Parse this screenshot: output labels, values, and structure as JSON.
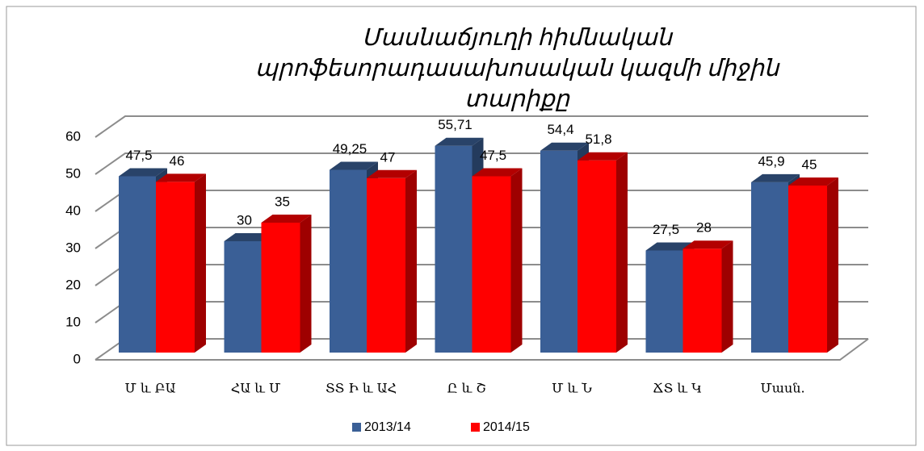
{
  "chart_data": {
    "type": "bar3d",
    "title": "Մասնաճյուղի հիմնական պրոֆեսորադասախոսական կազմի միջին տարիքը",
    "categories": [
      "Մ և ԲԱ",
      "ՀԱ և Մ",
      "ՏՏ Ի և ԱՀ",
      "Ը և Շ",
      "Մ և Ն",
      "ՃՏ և Կ",
      "Մասն."
    ],
    "series": [
      {
        "name": "2013/14",
        "color": "#3a5f96",
        "values": [
          47.5,
          30,
          49.25,
          55.71,
          54.4,
          27.5,
          45.9
        ],
        "value_labels": [
          "47,5",
          "30",
          "49,25",
          "55,71",
          "54,4",
          "27,5",
          "45,9"
        ]
      },
      {
        "name": "2014/15",
        "color": "#ff0000",
        "values": [
          46,
          35,
          47,
          47.5,
          51.8,
          28,
          45
        ],
        "value_labels": [
          "46",
          "35",
          "47",
          "47,5",
          "51,8",
          "28",
          "45"
        ]
      }
    ],
    "ylim": [
      0,
      60
    ],
    "yticks": [
      0,
      10,
      20,
      30,
      40,
      50,
      60
    ],
    "grid": true,
    "legend": "bottom"
  }
}
